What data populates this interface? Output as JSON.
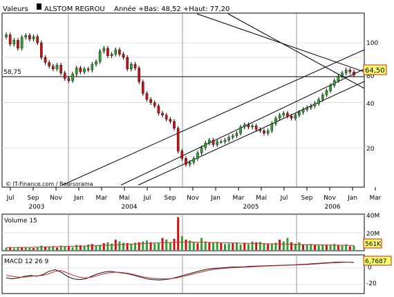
{
  "header": {
    "label_valeurs": "Valeurs",
    "stock_name": "ALSTOM REGROU",
    "info": "Année +Bas: 48,52 +Haut: 77,20"
  },
  "price_panel": {
    "y_ticks": [
      "100",
      "80",
      "40",
      "20"
    ],
    "ref_level_label": "58,75",
    "current_value_label": "64,50",
    "watermark": "© IT-Finance.com / Boursorama"
  },
  "x_axis": {
    "month_labels": [
      "Jul",
      "Sep",
      "Nov",
      "Jan",
      "Mar",
      "Mai",
      "Jul",
      "Sep",
      "Nov",
      "Jan",
      "Mar",
      "Mai",
      "Jul",
      "Sep",
      "Nov",
      "Jan",
      "Mar"
    ],
    "year_labels": [
      "2003",
      "2004",
      "2005",
      "2006"
    ]
  },
  "volume_panel": {
    "title": "Volume 15",
    "y_ticks": [
      "40M",
      "20M"
    ],
    "current_value_label": "561K"
  },
  "macd_panel": {
    "title": "MACD 12 26 9",
    "y_ticks": [
      "0",
      "-20"
    ],
    "current_value_label": "6,7687"
  },
  "colors": {
    "up": "#2da02d",
    "down": "#cc1111",
    "spike": "#cc1111",
    "macd": "#111111",
    "signal": "#cc2222",
    "value_box_fill": "#ffff66",
    "value_box_border": "#cc2222"
  },
  "chart_data": [
    {
      "type": "candlestick",
      "title": "ALSTOM REGROU",
      "x_range": [
        "2003-07",
        "2006-04"
      ],
      "y_scale": "log",
      "ylim": [
        13,
        130
      ],
      "closes": [
        113,
        98,
        104,
        92,
        109,
        112,
        106,
        110,
        100,
        80,
        74,
        70,
        67,
        71,
        63,
        58,
        56,
        62,
        68,
        64,
        67,
        66,
        72,
        75,
        88,
        92,
        82,
        84,
        90,
        84,
        80,
        67,
        72,
        68,
        55,
        46,
        42,
        40,
        38,
        34,
        33,
        31,
        30,
        27,
        19,
        17,
        15.5,
        16,
        17,
        18.5,
        20,
        21.5,
        22.5,
        21,
        22,
        22,
        22.5,
        23.5,
        24,
        25,
        27.5,
        28.5,
        27.5,
        28,
        26.5,
        26,
        25,
        26,
        29,
        31.5,
        33,
        34,
        32.5,
        31.5,
        33,
        34.5,
        36,
        37,
        38,
        39.5,
        42,
        45,
        48,
        52,
        56,
        60,
        63,
        66,
        64,
        61
      ],
      "reference_level": 58.75,
      "current_value": 64.5
    },
    {
      "type": "bar",
      "title": "Volume 15",
      "ylim": [
        0,
        40000000
      ],
      "values": [
        2500000,
        3000000,
        2000000,
        3500000,
        2800000,
        3200000,
        2600000,
        2400000,
        3000000,
        5000000,
        4000000,
        3500000,
        4500000,
        3000000,
        5000000,
        4200000,
        3800000,
        3200000,
        6000000,
        5500000,
        4800000,
        6500000,
        7000000,
        5000000,
        6000000,
        8000000,
        9000000,
        7500000,
        12000000,
        10000000,
        8500000,
        8000000,
        7000000,
        8500000,
        9000000,
        10000000,
        11000000,
        9000000,
        7500000,
        8000000,
        14000000,
        12000000,
        9000000,
        13000000,
        38000000,
        16000000,
        12000000,
        11000000,
        9000000,
        8000000,
        14000000,
        10000000,
        9000000,
        8500000,
        9500000,
        8000000,
        7000000,
        7500000,
        8000000,
        9000000,
        6500000,
        8500000,
        7000000,
        10000000,
        9000000,
        9500000,
        8000000,
        7000000,
        7500000,
        8500000,
        12000000,
        10000000,
        14000000,
        9000000,
        7500000,
        9000000,
        6500000,
        6000000,
        7000000,
        6000000,
        5500000,
        6500000,
        5500000,
        6000000,
        7000000,
        6000000,
        5000000,
        6500000,
        4500000,
        5000000
      ],
      "moving_average_values": [
        3000000,
        3000000,
        3200000,
        3500000,
        4000000,
        4300000,
        4600000,
        5000000,
        5500000,
        6000000,
        6800000,
        7500000,
        8200000,
        8600000,
        9000000,
        9200000,
        9000000,
        8600000,
        8300000,
        8000000,
        7600000,
        7300000,
        7000000,
        6600000,
        6300000,
        6000000,
        5800000,
        5600000,
        5300000
      ],
      "current_value": 561000
    },
    {
      "type": "line",
      "title": "MACD 12 26 9",
      "ylim": [
        -30,
        15
      ],
      "series": [
        {
          "values": [
            -12,
            -13,
            -12,
            -10,
            -9,
            -10,
            -8,
            -4,
            -2,
            -5,
            -10,
            -13,
            -14,
            -13,
            -10,
            -7,
            -5,
            -4,
            -5,
            -6,
            -7,
            -9,
            -11,
            -13,
            -14,
            -14.5,
            -14,
            -13,
            -11,
            -9,
            -7,
            -5,
            -3,
            -1.5,
            -0.5,
            0,
            0.5,
            1,
            1.2,
            1.5,
            2,
            2.3,
            2.5,
            2.8,
            3,
            3.2,
            3.5,
            3.8,
            4.2,
            4.5,
            5,
            5.5,
            6,
            6.5,
            7,
            7.2,
            7,
            6.8
          ]
        },
        {
          "values": [
            -9,
            -10,
            -11,
            -11,
            -10,
            -9.5,
            -9,
            -7,
            -4,
            -3,
            -6,
            -9,
            -11,
            -12,
            -11,
            -9,
            -7,
            -5.5,
            -5,
            -5.5,
            -6.5,
            -8,
            -10,
            -11.5,
            -12.5,
            -13,
            -13.2,
            -12.8,
            -11.8,
            -10.2,
            -8.4,
            -6.6,
            -4.8,
            -3.2,
            -1.8,
            -0.8,
            -0.2,
            0.3,
            0.7,
            1,
            1.4,
            1.8,
            2.1,
            2.4,
            2.7,
            3,
            3.2,
            3.5,
            3.8,
            4.1,
            4.5,
            5,
            5.5,
            6,
            6.4,
            6.8,
            7,
            7
          ]
        }
      ],
      "current_value": 6.7687
    }
  ]
}
